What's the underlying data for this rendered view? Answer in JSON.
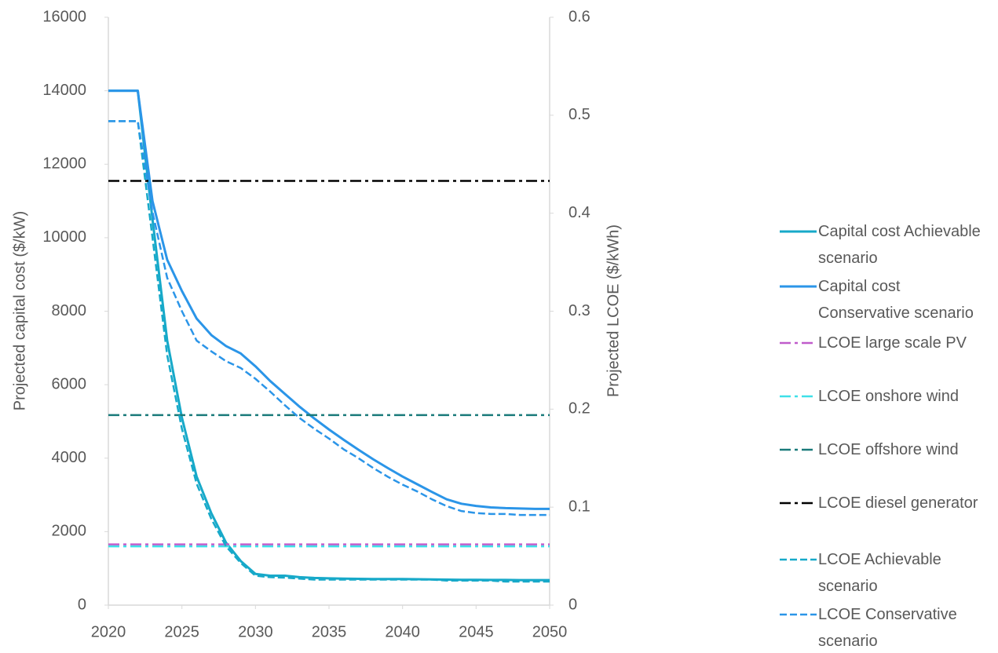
{
  "chart_data": {
    "type": "line",
    "ylabel": "Projected capital cost ($/kW)",
    "y2label": "Projected LCOE ($/kWh)",
    "x": [
      2020,
      2021,
      2022,
      2023,
      2024,
      2025,
      2026,
      2027,
      2028,
      2029,
      2030,
      2031,
      2032,
      2033,
      2034,
      2035,
      2036,
      2037,
      2038,
      2039,
      2040,
      2041,
      2042,
      2043,
      2044,
      2045,
      2046,
      2047,
      2048,
      2049,
      2050
    ],
    "xlim": [
      2020,
      2050
    ],
    "xticks": [
      2020,
      2025,
      2030,
      2035,
      2040,
      2045,
      2050
    ],
    "ylim": [
      0,
      16000
    ],
    "yticks": [
      0,
      2000,
      4000,
      6000,
      8000,
      10000,
      12000,
      14000,
      16000
    ],
    "y2lim": [
      0,
      0.6
    ],
    "y2ticks": [
      0,
      0.1,
      0.2,
      0.3,
      0.4,
      0.5,
      0.6
    ],
    "legend": "right",
    "series": [
      {
        "name": "Capital cost Achievable scenario",
        "color": "#17a9c9",
        "dash": "solid",
        "values": [
          14000,
          14000,
          14000,
          10500,
          7200,
          5100,
          3500,
          2500,
          1700,
          1200,
          850,
          800,
          800,
          760,
          740,
          730,
          720,
          715,
          710,
          710,
          710,
          705,
          700,
          695,
          690,
          690,
          685,
          685,
          680,
          680,
          680
        ]
      },
      {
        "name": "Capital cost Conservative scenario",
        "color": "#2b95e8",
        "dash": "solid",
        "values": [
          14000,
          14000,
          14000,
          11000,
          9400,
          8550,
          7800,
          7350,
          7050,
          6850,
          6500,
          6100,
          5750,
          5400,
          5080,
          4780,
          4500,
          4230,
          3970,
          3730,
          3500,
          3290,
          3080,
          2880,
          2760,
          2700,
          2660,
          2640,
          2630,
          2620,
          2620
        ]
      },
      {
        "name": "LCOE large scale PV",
        "color": "#c05ccb",
        "dash": "dash-dot",
        "axis": "y2",
        "x": [
          2020,
          2050
        ],
        "values": [
          0.062,
          0.062
        ]
      },
      {
        "name": "LCOE onshore wind",
        "color": "#3fe0e8",
        "dash": "dash-dot",
        "axis": "y2",
        "x": [
          2020,
          2050
        ],
        "values": [
          0.06,
          0.06
        ]
      },
      {
        "name": "LCOE offshore wind",
        "color": "#1a7a7a",
        "dash": "dash-dot",
        "axis": "y2",
        "x": [
          2020,
          2050
        ],
        "values": [
          0.194,
          0.194
        ]
      },
      {
        "name": "LCOE diesel generator",
        "color": "#000000",
        "dash": "dash-dot",
        "axis": "y2",
        "x": [
          2020,
          2050
        ],
        "values": [
          0.433,
          0.433
        ]
      },
      {
        "name": "LCOE Achievable scenario",
        "color": "#17a9c9",
        "dash": "dash",
        "axis": "y2",
        "values": [
          0.494,
          0.494,
          0.494,
          0.375,
          0.255,
          0.18,
          0.124,
          0.088,
          0.06,
          0.043,
          0.03,
          0.0285,
          0.028,
          0.027,
          0.026,
          0.026,
          0.026,
          0.026,
          0.026,
          0.026,
          0.026,
          0.026,
          0.026,
          0.025,
          0.025,
          0.025,
          0.025,
          0.024,
          0.024,
          0.024,
          0.024
        ]
      },
      {
        "name": "LCOE Conservative scenario",
        "color": "#2b95e8",
        "dash": "dash",
        "axis": "y2",
        "values": [
          0.494,
          0.494,
          0.494,
          0.401,
          0.334,
          0.3,
          0.27,
          0.259,
          0.249,
          0.242,
          0.231,
          0.218,
          0.204,
          0.191,
          0.18,
          0.17,
          0.159,
          0.15,
          0.14,
          0.131,
          0.123,
          0.116,
          0.108,
          0.101,
          0.096,
          0.094,
          0.093,
          0.093,
          0.092,
          0.092,
          0.092
        ]
      }
    ]
  }
}
